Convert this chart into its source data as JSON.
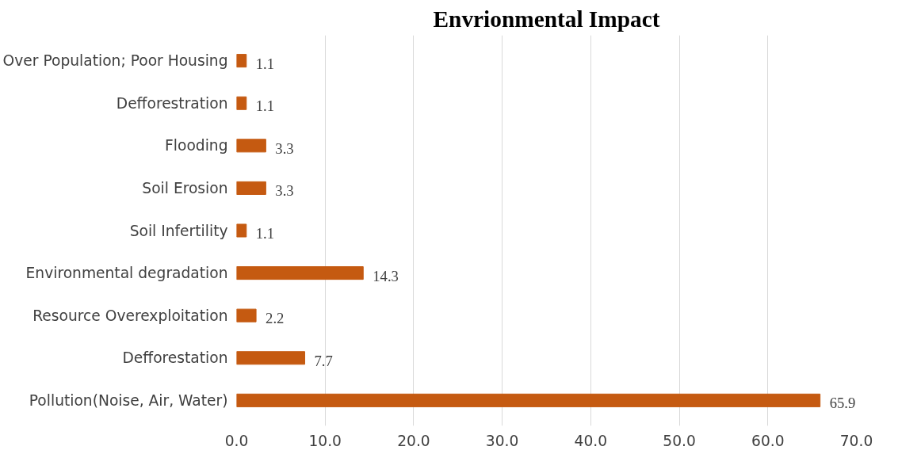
{
  "chart_data": {
    "type": "bar",
    "orientation": "horizontal",
    "title": "Envrionmental Impact",
    "categories": [
      "Over Population; Poor Housing",
      "Defforestration",
      "Flooding",
      "Soil Erosion",
      "Soil Infertility",
      "Environmental degradation",
      "Resource Overexploitation",
      "Defforestation",
      "Pollution(Noise, Air, Water)"
    ],
    "values": [
      1.1,
      1.1,
      3.3,
      3.3,
      1.1,
      14.3,
      2.2,
      7.7,
      65.9
    ],
    "color": "#c55a11",
    "data_labels": true,
    "grid": "x",
    "xlim": [
      0,
      70
    ],
    "xticks": [
      {
        "value": 0,
        "label": "0.0"
      },
      {
        "value": 10,
        "label": "10.0"
      },
      {
        "value": 20,
        "label": "20.0"
      },
      {
        "value": 30,
        "label": "30.0"
      },
      {
        "value": 40,
        "label": "40.0"
      },
      {
        "value": 50,
        "label": "50.0"
      },
      {
        "value": 60,
        "label": "60.0"
      },
      {
        "value": 70,
        "label": "70.0"
      }
    ]
  }
}
